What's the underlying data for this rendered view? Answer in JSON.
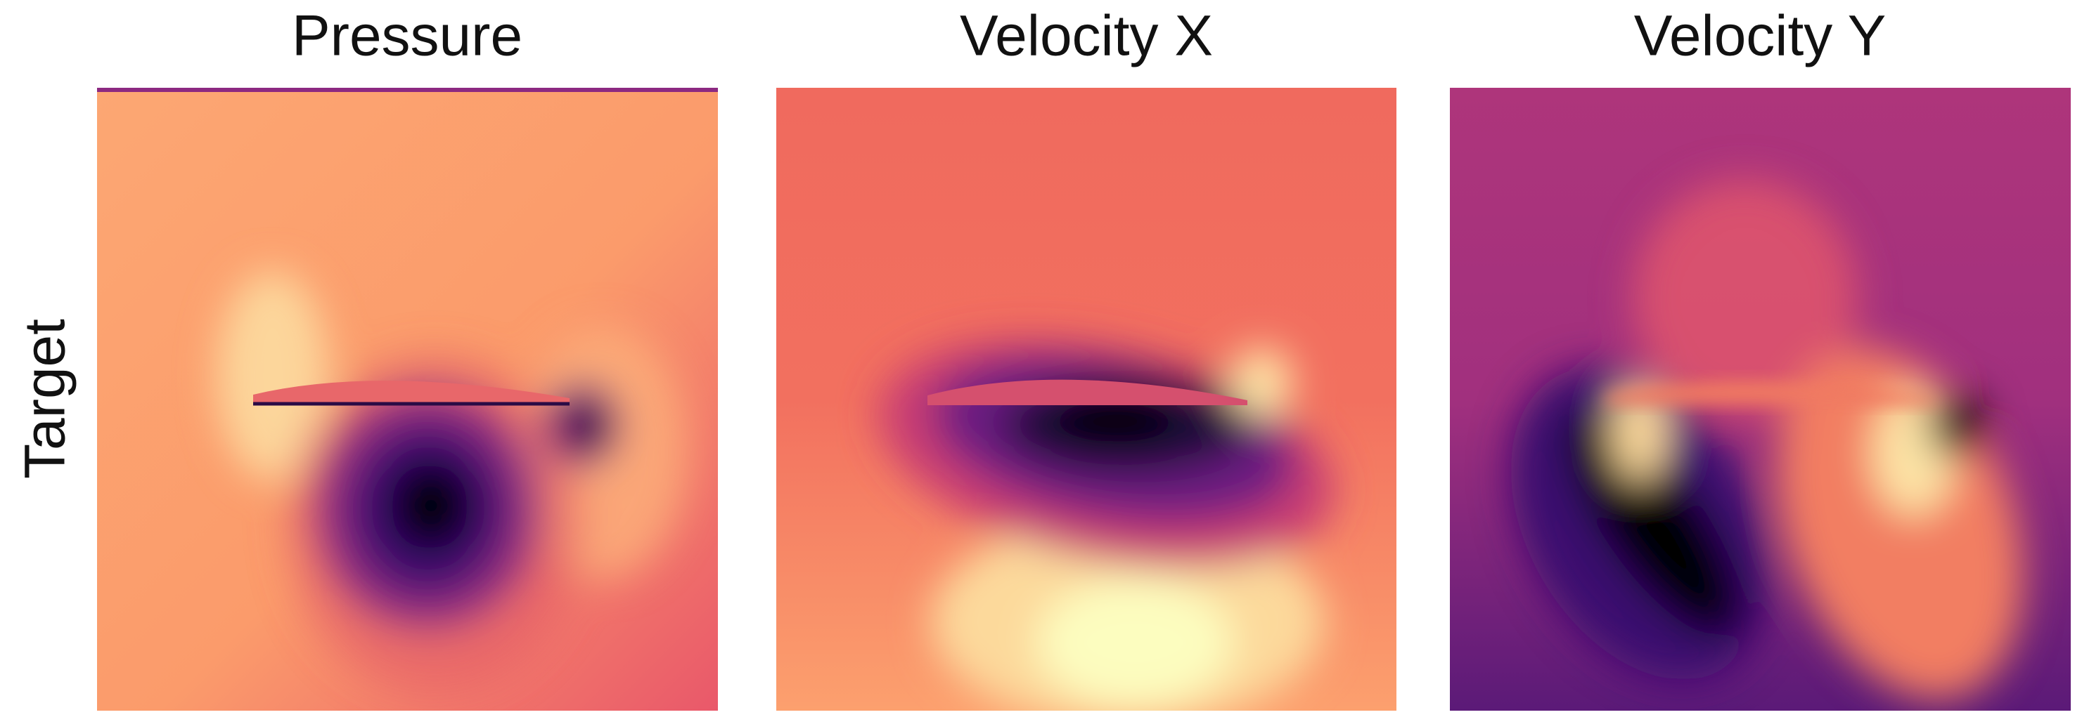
{
  "columns": [
    {
      "title": "Pressure"
    },
    {
      "title": "Velocity X"
    },
    {
      "title": "Velocity Y"
    }
  ],
  "rows": [
    {
      "label": "Target"
    }
  ]
}
